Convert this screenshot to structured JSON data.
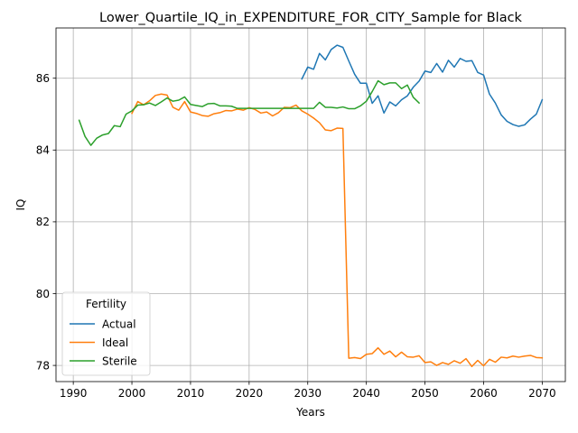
{
  "chart_data": {
    "type": "line",
    "title": "Lower_Quartile_IQ_in_EXPENDITURE_FOR_CITY_Sample for Black",
    "xlabel": "Years",
    "ylabel": "IQ",
    "xlim": [
      1987.05,
      2073.95
    ],
    "ylim": [
      77.55,
      87.4
    ],
    "xticks": [
      1990,
      2000,
      2010,
      2020,
      2030,
      2040,
      2050,
      2060,
      2070
    ],
    "yticks": [
      78,
      80,
      82,
      84,
      86
    ],
    "grid": true,
    "legend": {
      "title": "Fertility",
      "placement": "lower-left"
    },
    "series": [
      {
        "name": "Actual",
        "color": "#1f77b4",
        "x": [
          2029,
          2030,
          2031,
          2032,
          2033,
          2034,
          2035,
          2036,
          2037,
          2038,
          2039,
          2040,
          2041,
          2042,
          2043,
          2044,
          2045,
          2046,
          2047,
          2048,
          2049,
          2050,
          2051,
          2052,
          2053,
          2054,
          2055,
          2056,
          2057,
          2058,
          2059,
          2060,
          2061,
          2062,
          2063,
          2064,
          2065,
          2066,
          2067,
          2068,
          2069,
          2070
        ],
        "y": [
          85.98,
          86.31,
          86.25,
          86.69,
          86.51,
          86.8,
          86.92,
          86.86,
          86.48,
          86.11,
          85.86,
          85.86,
          85.3,
          85.51,
          85.03,
          85.34,
          85.23,
          85.4,
          85.51,
          85.75,
          85.92,
          86.2,
          86.16,
          86.41,
          86.17,
          86.5,
          86.31,
          86.55,
          86.47,
          86.49,
          86.16,
          86.09,
          85.56,
          85.31,
          84.98,
          84.8,
          84.71,
          84.66,
          84.7,
          84.86,
          85.0,
          85.4
        ]
      },
      {
        "name": "Ideal",
        "color": "#ff7f0e",
        "x": [
          2000,
          2001,
          2002,
          2003,
          2004,
          2005,
          2006,
          2007,
          2008,
          2009,
          2010,
          2011,
          2012,
          2013,
          2014,
          2015,
          2016,
          2017,
          2018,
          2019,
          2020,
          2021,
          2022,
          2023,
          2024,
          2025,
          2026,
          2027,
          2028,
          2029,
          2030,
          2031,
          2032,
          2033,
          2034,
          2035,
          2036,
          2037,
          2038,
          2039,
          2040,
          2041,
          2042,
          2043,
          2044,
          2045,
          2046,
          2047,
          2048,
          2049,
          2050,
          2051,
          2052,
          2053,
          2054,
          2055,
          2056,
          2057,
          2058,
          2059,
          2060,
          2061,
          2062,
          2063,
          2064,
          2065,
          2066,
          2067,
          2068,
          2069,
          2070
        ],
        "y": [
          85.02,
          85.35,
          85.26,
          85.37,
          85.52,
          85.56,
          85.53,
          85.19,
          85.11,
          85.35,
          85.06,
          85.02,
          84.96,
          84.94,
          85.01,
          85.04,
          85.1,
          85.09,
          85.14,
          85.11,
          85.18,
          85.13,
          85.03,
          85.06,
          84.95,
          85.04,
          85.19,
          85.18,
          85.25,
          85.09,
          85.0,
          84.89,
          84.76,
          84.56,
          84.54,
          84.61,
          84.6,
          78.2,
          78.22,
          78.19,
          78.31,
          78.33,
          78.49,
          78.31,
          78.4,
          78.24,
          78.37,
          78.24,
          78.23,
          78.27,
          78.08,
          78.1,
          78.0,
          78.08,
          78.03,
          78.13,
          78.06,
          78.19,
          77.97,
          78.14,
          77.99,
          78.17,
          78.09,
          78.23,
          78.21,
          78.26,
          78.23,
          78.26,
          78.28,
          78.22,
          78.21
        ]
      },
      {
        "name": "Sterile",
        "color": "#2ca02c",
        "x": [
          1991,
          1992,
          1993,
          1994,
          1995,
          1996,
          1997,
          1998,
          1999,
          2000,
          2001,
          2002,
          2003,
          2004,
          2005,
          2006,
          2007,
          2008,
          2009,
          2010,
          2011,
          2012,
          2013,
          2014,
          2015,
          2016,
          2017,
          2018,
          2019,
          2020,
          2021,
          2022,
          2023,
          2024,
          2025,
          2026,
          2027,
          2028,
          2029,
          2030,
          2031,
          2032,
          2033,
          2034,
          2035,
          2036,
          2037,
          2038,
          2039,
          2040,
          2041,
          2042,
          2043,
          2044,
          2045,
          2046,
          2047,
          2048,
          2049
        ],
        "y": [
          84.83,
          84.38,
          84.13,
          84.33,
          84.42,
          84.46,
          84.68,
          84.65,
          85.0,
          85.09,
          85.25,
          85.26,
          85.31,
          85.24,
          85.34,
          85.45,
          85.36,
          85.39,
          85.48,
          85.27,
          85.24,
          85.21,
          85.29,
          85.3,
          85.23,
          85.23,
          85.22,
          85.16,
          85.16,
          85.16,
          85.16,
          85.16,
          85.16,
          85.16,
          85.16,
          85.16,
          85.16,
          85.16,
          85.16,
          85.16,
          85.16,
          85.33,
          85.19,
          85.19,
          85.17,
          85.2,
          85.15,
          85.15,
          85.23,
          85.36,
          85.63,
          85.93,
          85.82,
          85.87,
          85.87,
          85.71,
          85.81,
          85.47,
          85.31
        ]
      }
    ]
  }
}
